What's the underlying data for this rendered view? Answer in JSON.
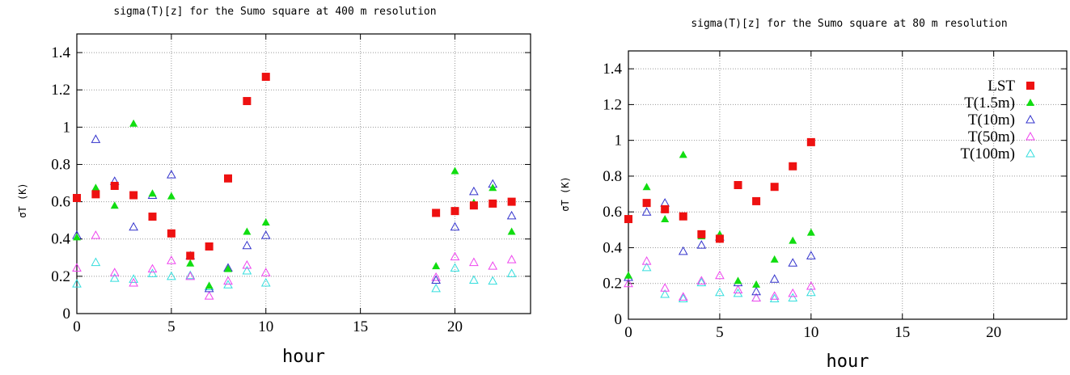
{
  "chart_data": [
    {
      "type": "scatter",
      "title": "sigma(T)[z] for the Sumo square at 400 m resolution",
      "xlabel": "hour",
      "ylabel": "σT (K)",
      "xlim": [
        0,
        24
      ],
      "ylim": [
        0,
        1.5
      ],
      "xticks": [
        0,
        5,
        10,
        15,
        20
      ],
      "yticks": [
        0,
        0.2,
        0.4,
        0.6,
        0.8,
        1,
        1.2,
        1.4
      ],
      "grid": true,
      "legend": "none",
      "series": [
        {
          "label": "LST",
          "marker": "filled-square",
          "color": "#ee1111",
          "x": [
            0,
            1,
            2,
            3,
            4,
            5,
            6,
            7,
            8,
            9,
            10,
            19,
            20,
            21,
            22,
            23
          ],
          "y": [
            0.62,
            0.64,
            0.685,
            0.635,
            0.52,
            0.43,
            0.31,
            0.36,
            0.725,
            1.14,
            1.27,
            0.54,
            0.55,
            0.58,
            0.59,
            0.6
          ]
        },
        {
          "label": "T(1.5m)",
          "marker": "filled-triangle",
          "color": "#11dd11",
          "x": [
            0,
            1,
            2,
            3,
            4,
            5,
            6,
            7,
            8,
            9,
            10,
            19,
            20,
            21,
            22,
            23
          ],
          "y": [
            0.41,
            0.675,
            0.58,
            1.02,
            0.645,
            0.63,
            0.27,
            0.15,
            0.24,
            0.44,
            0.49,
            0.255,
            0.765,
            0.595,
            0.675,
            0.44
          ]
        },
        {
          "label": "T(10m)",
          "marker": "open-triangle",
          "color": "#3333cc",
          "x": [
            0,
            1,
            2,
            3,
            4,
            5,
            6,
            7,
            8,
            9,
            10,
            19,
            20,
            21,
            22,
            23
          ],
          "y": [
            0.42,
            0.935,
            0.71,
            0.465,
            0.635,
            0.745,
            0.31,
            0.135,
            0.245,
            0.365,
            0.42,
            0.18,
            0.465,
            0.655,
            0.695,
            0.525
          ]
        },
        {
          "label": "T(50m)",
          "marker": "open-triangle",
          "color": "#ee44ee",
          "x": [
            0,
            1,
            2,
            3,
            4,
            5,
            6,
            7,
            8,
            9,
            10,
            19,
            20,
            21,
            22,
            23
          ],
          "y": [
            0.245,
            0.42,
            0.22,
            0.165,
            0.24,
            0.285,
            0.2,
            0.095,
            0.175,
            0.26,
            0.22,
            0.195,
            0.305,
            0.275,
            0.255,
            0.29
          ]
        },
        {
          "label": "T(100m)",
          "marker": "open-triangle",
          "color": "#33dddd",
          "x": [
            0,
            1,
            2,
            3,
            4,
            5,
            6,
            7,
            8,
            9,
            10,
            19,
            20,
            21,
            22,
            23
          ],
          "y": [
            0.16,
            0.275,
            0.19,
            0.185,
            0.215,
            0.2,
            0.205,
            0.145,
            0.155,
            0.23,
            0.165,
            0.135,
            0.245,
            0.18,
            0.175,
            0.215
          ]
        }
      ]
    },
    {
      "type": "scatter",
      "title": "sigma(T)[z] for the Sumo square at 80 m resolution",
      "xlabel": "hour",
      "ylabel": "σT (K)",
      "xlim": [
        0,
        24
      ],
      "ylim": [
        0,
        1.5
      ],
      "xticks": [
        0,
        5,
        10,
        15,
        20
      ],
      "yticks": [
        0,
        0.2,
        0.4,
        0.6,
        0.8,
        1,
        1.2,
        1.4
      ],
      "grid": true,
      "legend": "top-right",
      "series": [
        {
          "label": "LST",
          "marker": "filled-square",
          "color": "#ee1111",
          "x": [
            0,
            1,
            2,
            3,
            4,
            5,
            6,
            7,
            8,
            9,
            10
          ],
          "y": [
            0.56,
            0.65,
            0.615,
            0.575,
            0.475,
            0.45,
            0.75,
            0.66,
            0.74,
            0.855,
            0.99
          ]
        },
        {
          "label": "T(1.5m)",
          "marker": "filled-triangle",
          "color": "#11dd11",
          "x": [
            0,
            1,
            2,
            3,
            4,
            5,
            6,
            7,
            8,
            9,
            10
          ],
          "y": [
            0.245,
            0.74,
            0.56,
            0.92,
            0.465,
            0.475,
            0.215,
            0.195,
            0.335,
            0.44,
            0.485
          ]
        },
        {
          "label": "T(10m)",
          "marker": "open-triangle",
          "color": "#3333cc",
          "x": [
            0,
            1,
            2,
            3,
            4,
            5,
            6,
            7,
            8,
            9,
            10
          ],
          "y": [
            0.235,
            0.6,
            0.65,
            0.38,
            0.415,
            0.46,
            0.205,
            0.155,
            0.225,
            0.315,
            0.355
          ]
        },
        {
          "label": "T(50m)",
          "marker": "open-triangle",
          "color": "#ee44ee",
          "x": [
            0,
            1,
            2,
            3,
            4,
            5,
            6,
            7,
            8,
            9,
            10
          ],
          "y": [
            0.2,
            0.325,
            0.175,
            0.125,
            0.215,
            0.245,
            0.165,
            0.12,
            0.13,
            0.145,
            0.185
          ]
        },
        {
          "label": "T(100m)",
          "marker": "open-triangle",
          "color": "#33dddd",
          "x": [
            0,
            1,
            2,
            3,
            4,
            5,
            6,
            7,
            8,
            9,
            10
          ],
          "y": [
            0.235,
            0.29,
            0.14,
            0.115,
            0.205,
            0.15,
            0.145,
            0.12,
            0.115,
            0.12,
            0.15
          ]
        }
      ]
    }
  ]
}
